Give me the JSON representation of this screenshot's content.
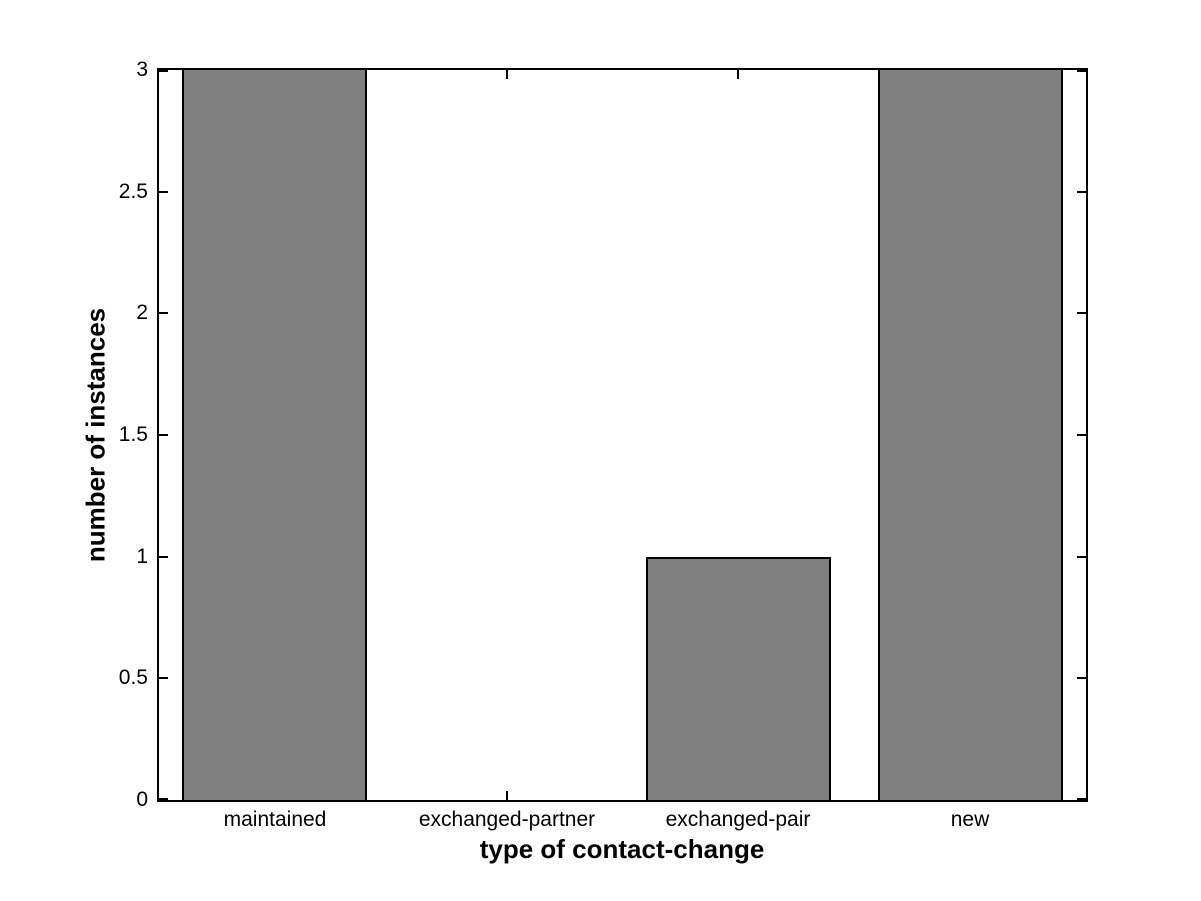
{
  "chart_data": {
    "type": "bar",
    "categories": [
      "maintained",
      "exchanged-partner",
      "exchanged-pair",
      "new"
    ],
    "values": [
      3,
      0,
      1,
      3
    ],
    "xlabel": "type of contact-change",
    "ylabel": "number of instances",
    "ylim": [
      0,
      3
    ],
    "yticks": [
      0,
      0.5,
      1,
      1.5,
      2,
      2.5,
      3
    ],
    "ytick_labels": [
      "0",
      "0.5",
      "1",
      "1.5",
      "2",
      "2.5",
      "3"
    ],
    "bar_width_fraction": 0.8,
    "bar_fill_color": "#808080",
    "bar_edge_color": "#000000",
    "axis_color": "#000000",
    "plot_background": "#ffffff",
    "figure_background": "#ffffff",
    "grid": false,
    "box": true,
    "tick_direction": "in",
    "legend": "none",
    "title": ""
  }
}
